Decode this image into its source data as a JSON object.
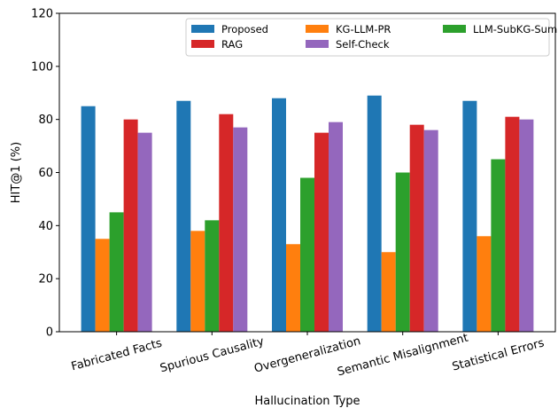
{
  "chart_data": {
    "type": "bar",
    "xlabel": "Hallucination Type",
    "ylabel": "HIT@1 (%)",
    "ylim": [
      0,
      120
    ],
    "yticks": [
      0,
      20,
      40,
      60,
      80,
      100,
      120
    ],
    "grid": false,
    "legend_placement": "top-right",
    "categories": [
      "Fabricated Facts",
      "Spurious Causality",
      "Overgeneralization",
      "Semantic Misalignment",
      "Statistical Errors"
    ],
    "series": [
      {
        "name": "Proposed",
        "color": "#1f77b4",
        "values": [
          85,
          87,
          88,
          89,
          87
        ]
      },
      {
        "name": "KG-LLM-PR",
        "color": "#ff7f0e",
        "values": [
          35,
          38,
          33,
          30,
          36
        ]
      },
      {
        "name": "LLM-SubKG-Sum",
        "color": "#2ca02c",
        "values": [
          45,
          42,
          58,
          60,
          65
        ]
      },
      {
        "name": "RAG",
        "color": "#d62728",
        "values": [
          80,
          82,
          75,
          78,
          81
        ]
      },
      {
        "name": "Self-Check",
        "color": "#9467bd",
        "values": [
          75,
          77,
          79,
          76,
          80
        ]
      }
    ]
  }
}
